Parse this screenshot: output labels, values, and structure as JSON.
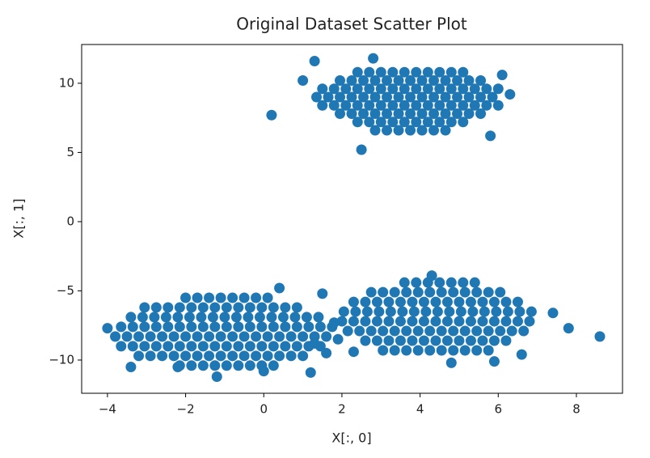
{
  "chart_data": {
    "type": "scatter",
    "title": "Original Dataset Scatter Plot",
    "xlabel": "X[:, 0]",
    "ylabel": "X[:, 1]",
    "color": "#1f77b4",
    "xlim": [
      -4.66,
      9.18
    ],
    "ylim": [
      -12.4,
      12.8
    ],
    "xticks": [
      {
        "value": -4,
        "label": "−4"
      },
      {
        "value": -2,
        "label": "−2"
      },
      0,
      2,
      4,
      6,
      8
    ],
    "yticks": [
      {
        "value": -10,
        "label": "−10"
      },
      {
        "value": -5,
        "label": "−5"
      },
      0,
      5,
      10
    ],
    "x": [
      2.4,
      2.7,
      3.0,
      3.3,
      3.6,
      3.9,
      4.2,
      4.5,
      4.8,
      5.1,
      1.95,
      2.25,
      2.55,
      2.85,
      3.15,
      3.45,
      3.75,
      4.05,
      4.35,
      4.65,
      4.95,
      5.25,
      5.55,
      1.5,
      1.8,
      2.1,
      2.4,
      2.7,
      3.0,
      3.3,
      3.6,
      3.9,
      4.2,
      4.5,
      4.8,
      5.1,
      5.4,
      5.7,
      6.0,
      1.35,
      1.65,
      1.95,
      2.25,
      2.55,
      2.85,
      3.15,
      3.45,
      3.75,
      4.05,
      4.35,
      4.65,
      4.95,
      5.25,
      5.55,
      5.85,
      1.5,
      1.8,
      2.1,
      2.4,
      2.7,
      3.0,
      3.3,
      3.6,
      3.9,
      4.2,
      4.5,
      4.8,
      5.1,
      5.4,
      5.7,
      6.0,
      1.95,
      2.25,
      2.55,
      2.85,
      3.15,
      3.45,
      3.75,
      4.05,
      4.35,
      4.65,
      4.95,
      5.25,
      5.55,
      2.4,
      2.7,
      3.0,
      3.3,
      3.6,
      3.9,
      4.2,
      4.5,
      4.8,
      5.1,
      2.85,
      3.15,
      3.45,
      3.75,
      4.05,
      4.35,
      4.65,
      0.2,
      2.5,
      2.8,
      6.3,
      1.3,
      5.8,
      6.1,
      1.0,
      -2.0,
      -1.7,
      -1.4,
      -1.1,
      -0.8,
      -0.5,
      -0.2,
      0.1,
      -3.05,
      -2.75,
      -2.45,
      -2.15,
      -1.85,
      -1.55,
      -1.25,
      -0.95,
      -0.65,
      -0.35,
      -0.05,
      0.25,
      0.55,
      0.85,
      -3.4,
      -3.1,
      -2.8,
      -2.5,
      -2.2,
      -1.9,
      -1.6,
      -1.3,
      -1.0,
      -0.7,
      -0.4,
      -0.1,
      0.2,
      0.5,
      0.8,
      1.1,
      1.4,
      -3.65,
      -3.35,
      -3.05,
      -2.75,
      -2.45,
      -2.15,
      -1.85,
      -1.55,
      -1.25,
      -0.95,
      -0.65,
      -0.35,
      -0.05,
      0.25,
      0.55,
      0.85,
      1.15,
      1.45,
      1.75,
      -3.8,
      -3.5,
      -3.2,
      -2.9,
      -2.6,
      -2.3,
      -2.0,
      -1.7,
      -1.4,
      -1.1,
      -0.8,
      -0.5,
      -0.2,
      0.1,
      0.4,
      0.7,
      1.0,
      1.3,
      1.6,
      -3.65,
      -3.35,
      -3.05,
      -2.75,
      -2.45,
      -2.15,
      -1.85,
      -1.55,
      -1.25,
      -0.95,
      -0.65,
      -0.35,
      -0.05,
      0.25,
      0.55,
      0.85,
      1.15,
      1.45,
      -3.2,
      -2.9,
      -2.6,
      -2.3,
      -2.0,
      -1.7,
      -1.4,
      -1.1,
      -0.8,
      -0.5,
      -0.2,
      0.1,
      0.4,
      0.7,
      1.0,
      -2.15,
      -1.85,
      -1.55,
      -1.25,
      -0.95,
      -0.65,
      -0.35,
      -0.05,
      0.25,
      -3.4,
      -1.2,
      1.2,
      0.4,
      1.5,
      -4.0,
      1.6,
      1.9,
      -2.2,
      0.0,
      3.6,
      3.9,
      4.2,
      4.5,
      4.8,
      5.1,
      5.4,
      2.75,
      3.05,
      3.35,
      3.65,
      3.95,
      4.25,
      4.55,
      4.85,
      5.15,
      5.45,
      5.75,
      6.05,
      2.3,
      2.6,
      2.9,
      3.2,
      3.5,
      3.8,
      4.1,
      4.4,
      4.7,
      5.0,
      5.3,
      5.6,
      5.9,
      6.2,
      6.5,
      2.05,
      2.35,
      2.65,
      2.95,
      3.25,
      3.55,
      3.85,
      4.15,
      4.45,
      4.75,
      5.05,
      5.35,
      5.65,
      5.95,
      6.25,
      6.55,
      6.85,
      2.0,
      2.3,
      2.6,
      2.9,
      3.2,
      3.5,
      3.8,
      4.1,
      4.4,
      4.7,
      5.0,
      5.3,
      5.6,
      5.9,
      6.2,
      6.5,
      6.8,
      2.15,
      2.45,
      2.75,
      3.05,
      3.35,
      3.65,
      3.95,
      4.25,
      4.55,
      4.85,
      5.15,
      5.45,
      5.75,
      6.05,
      6.35,
      6.65,
      2.6,
      2.9,
      3.2,
      3.5,
      3.8,
      4.1,
      4.4,
      4.7,
      5.0,
      5.3,
      5.6,
      5.9,
      6.2,
      3.05,
      3.35,
      3.65,
      3.95,
      4.25,
      4.55,
      4.85,
      5.15,
      5.45,
      5.75,
      7.8,
      8.6,
      7.4,
      1.3,
      2.3,
      4.8,
      5.9,
      6.6,
      4.3,
      1.8
    ],
    "y": [
      10.8,
      10.8,
      10.8,
      10.8,
      10.8,
      10.8,
      10.8,
      10.8,
      10.8,
      10.8,
      10.2,
      10.2,
      10.2,
      10.2,
      10.2,
      10.2,
      10.2,
      10.2,
      10.2,
      10.2,
      10.2,
      10.2,
      10.2,
      9.6,
      9.6,
      9.6,
      9.6,
      9.6,
      9.6,
      9.6,
      9.6,
      9.6,
      9.6,
      9.6,
      9.6,
      9.6,
      9.6,
      9.6,
      9.6,
      9.0,
      9.0,
      9.0,
      9.0,
      9.0,
      9.0,
      9.0,
      9.0,
      9.0,
      9.0,
      9.0,
      9.0,
      9.0,
      9.0,
      9.0,
      9.0,
      8.4,
      8.4,
      8.4,
      8.4,
      8.4,
      8.4,
      8.4,
      8.4,
      8.4,
      8.4,
      8.4,
      8.4,
      8.4,
      8.4,
      8.4,
      8.4,
      7.8,
      7.8,
      7.8,
      7.8,
      7.8,
      7.8,
      7.8,
      7.8,
      7.8,
      7.8,
      7.8,
      7.8,
      7.8,
      7.2,
      7.2,
      7.2,
      7.2,
      7.2,
      7.2,
      7.2,
      7.2,
      7.2,
      7.2,
      6.6,
      6.6,
      6.6,
      6.6,
      6.6,
      6.6,
      6.6,
      7.7,
      5.2,
      11.8,
      9.2,
      11.6,
      6.2,
      10.6,
      10.2,
      -5.5,
      -5.5,
      -5.5,
      -5.5,
      -5.5,
      -5.5,
      -5.5,
      -5.5,
      -6.2,
      -6.2,
      -6.2,
      -6.2,
      -6.2,
      -6.2,
      -6.2,
      -6.2,
      -6.2,
      -6.2,
      -6.2,
      -6.2,
      -6.2,
      -6.2,
      -6.9,
      -6.9,
      -6.9,
      -6.9,
      -6.9,
      -6.9,
      -6.9,
      -6.9,
      -6.9,
      -6.9,
      -6.9,
      -6.9,
      -6.9,
      -6.9,
      -6.9,
      -6.9,
      -6.9,
      -7.6,
      -7.6,
      -7.6,
      -7.6,
      -7.6,
      -7.6,
      -7.6,
      -7.6,
      -7.6,
      -7.6,
      -7.6,
      -7.6,
      -7.6,
      -7.6,
      -7.6,
      -7.6,
      -7.6,
      -7.6,
      -7.6,
      -8.3,
      -8.3,
      -8.3,
      -8.3,
      -8.3,
      -8.3,
      -8.3,
      -8.3,
      -8.3,
      -8.3,
      -8.3,
      -8.3,
      -8.3,
      -8.3,
      -8.3,
      -8.3,
      -8.3,
      -8.3,
      -8.3,
      -9.0,
      -9.0,
      -9.0,
      -9.0,
      -9.0,
      -9.0,
      -9.0,
      -9.0,
      -9.0,
      -9.0,
      -9.0,
      -9.0,
      -9.0,
      -9.0,
      -9.0,
      -9.0,
      -9.0,
      -9.0,
      -9.7,
      -9.7,
      -9.7,
      -9.7,
      -9.7,
      -9.7,
      -9.7,
      -9.7,
      -9.7,
      -9.7,
      -9.7,
      -9.7,
      -9.7,
      -9.7,
      -9.7,
      -10.4,
      -10.4,
      -10.4,
      -10.4,
      -10.4,
      -10.4,
      -10.4,
      -10.4,
      -10.4,
      -10.5,
      -11.2,
      -10.9,
      -4.8,
      -5.2,
      -7.7,
      -9.5,
      -8.5,
      -10.5,
      -10.8,
      -4.4,
      -4.4,
      -4.4,
      -4.4,
      -4.4,
      -4.4,
      -4.4,
      -5.1,
      -5.1,
      -5.1,
      -5.1,
      -5.1,
      -5.1,
      -5.1,
      -5.1,
      -5.1,
      -5.1,
      -5.1,
      -5.1,
      -5.8,
      -5.8,
      -5.8,
      -5.8,
      -5.8,
      -5.8,
      -5.8,
      -5.8,
      -5.8,
      -5.8,
      -5.8,
      -5.8,
      -5.8,
      -5.8,
      -5.8,
      -6.5,
      -6.5,
      -6.5,
      -6.5,
      -6.5,
      -6.5,
      -6.5,
      -6.5,
      -6.5,
      -6.5,
      -6.5,
      -6.5,
      -6.5,
      -6.5,
      -6.5,
      -6.5,
      -6.5,
      -7.2,
      -7.2,
      -7.2,
      -7.2,
      -7.2,
      -7.2,
      -7.2,
      -7.2,
      -7.2,
      -7.2,
      -7.2,
      -7.2,
      -7.2,
      -7.2,
      -7.2,
      -7.2,
      -7.2,
      -7.9,
      -7.9,
      -7.9,
      -7.9,
      -7.9,
      -7.9,
      -7.9,
      -7.9,
      -7.9,
      -7.9,
      -7.9,
      -7.9,
      -7.9,
      -7.9,
      -7.9,
      -7.9,
      -8.6,
      -8.6,
      -8.6,
      -8.6,
      -8.6,
      -8.6,
      -8.6,
      -8.6,
      -8.6,
      -8.6,
      -8.6,
      -8.6,
      -8.6,
      -9.3,
      -9.3,
      -9.3,
      -9.3,
      -9.3,
      -9.3,
      -9.3,
      -9.3,
      -9.3,
      -9.3,
      -7.7,
      -8.3,
      -6.6,
      -8.8,
      -9.4,
      -10.2,
      -10.1,
      -9.6,
      -3.9,
      -7.3
    ]
  }
}
